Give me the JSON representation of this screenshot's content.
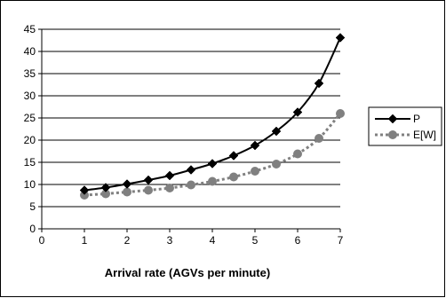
{
  "chart_data": {
    "type": "line",
    "title": "",
    "xlabel": "Arrival rate (AGVs per minute)",
    "ylabel": "",
    "xlim": [
      0,
      7
    ],
    "ylim": [
      0,
      45
    ],
    "x_ticks": [
      "0",
      "1",
      "2",
      "3",
      "4",
      "5",
      "6",
      "7"
    ],
    "y_ticks": [
      "0",
      "5",
      "10",
      "15",
      "20",
      "25",
      "30",
      "35",
      "40",
      "45"
    ],
    "grid": "horizontal",
    "legend_position": "right",
    "x": [
      1,
      1.5,
      2,
      2.5,
      3,
      3.5,
      4,
      4.5,
      5,
      5.5,
      6,
      6.5,
      7
    ],
    "series": [
      {
        "name": "P",
        "values": [
          8.7,
          9.3,
          10.1,
          11.0,
          12.0,
          13.3,
          14.7,
          16.5,
          18.8,
          22.0,
          26.3,
          32.8,
          43.1
        ],
        "color": "#000000",
        "marker": "diamond",
        "line_style": "solid"
      },
      {
        "name": "E[W]",
        "values": [
          7.6,
          7.9,
          8.3,
          8.7,
          9.2,
          9.9,
          10.7,
          11.7,
          13.0,
          14.6,
          16.9,
          20.4,
          26.0
        ],
        "color": "#808080",
        "marker": "circle",
        "line_style": "dashed"
      }
    ]
  }
}
